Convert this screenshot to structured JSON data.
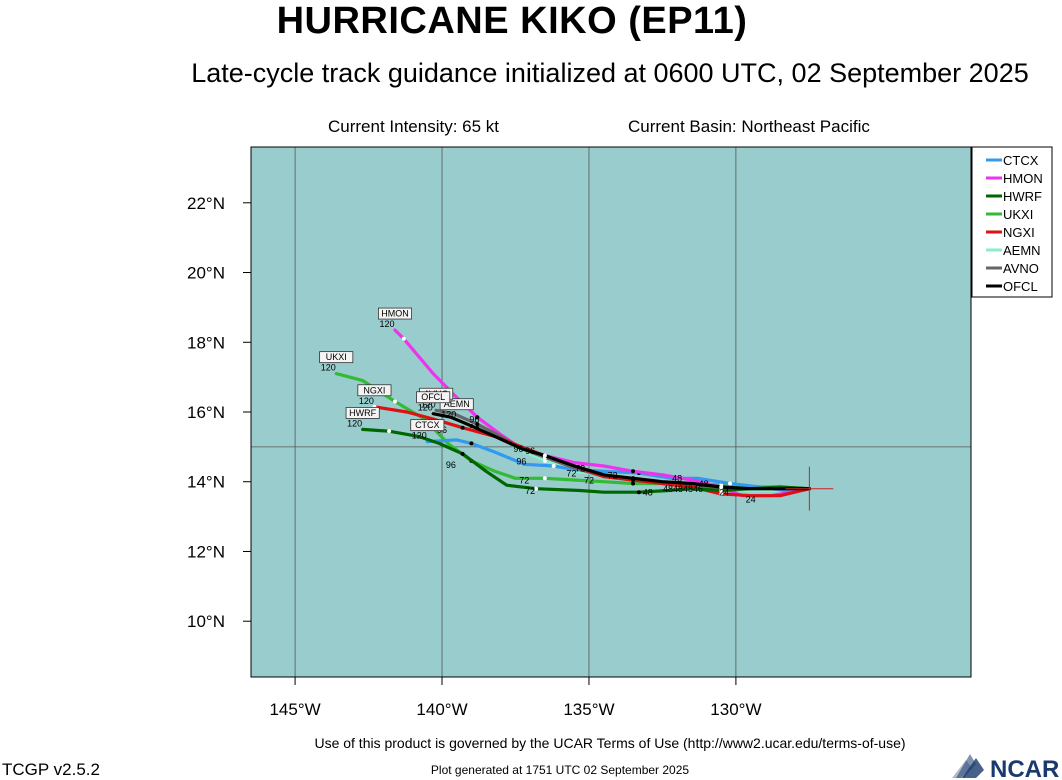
{
  "header": {
    "title": "HURRICANE KIKO (EP11)",
    "subtitle": "Late-cycle track guidance initialized at 0600 UTC, 02 September 2025",
    "current_intensity": "Current Intensity: 65 kt",
    "current_basin": "Current Basin: Northeast Pacific"
  },
  "map": {
    "lon_range": [
      -146.5,
      -122
    ],
    "lat_range": [
      8.4,
      23.6
    ],
    "background_color": "#99cccc",
    "lon_ticks": [
      {
        "value": -145,
        "label": "145°W"
      },
      {
        "value": -140,
        "label": "140°W"
      },
      {
        "value": -135,
        "label": "135°W"
      },
      {
        "value": -130,
        "label": "130°W"
      }
    ],
    "lat_ticks": [
      {
        "value": 10,
        "label": "10°N"
      },
      {
        "value": 12,
        "label": "12°N"
      },
      {
        "value": 14,
        "label": "14°N"
      },
      {
        "value": 16,
        "label": "16°N"
      },
      {
        "value": 18,
        "label": "18°N"
      },
      {
        "value": 20,
        "label": "20°N"
      },
      {
        "value": 22,
        "label": "22°N"
      }
    ],
    "grid_lons": [
      -145,
      -140,
      -135,
      -130
    ],
    "grid_lats": [
      15
    ]
  },
  "current_position": {
    "lon": -127.5,
    "lat": 13.8
  },
  "models": [
    {
      "name": "CTCX",
      "color": "#3399ee",
      "end_label": "CTCX",
      "end_hour": "120",
      "points": [
        [
          -127.5,
          13.8
        ],
        [
          -128.3,
          13.75
        ],
        [
          -129.2,
          13.85
        ],
        [
          -130.2,
          13.95
        ],
        [
          -131.3,
          14.1
        ],
        [
          -132.2,
          14.1
        ],
        [
          -133.3,
          14.25
        ],
        [
          -134.5,
          14.3
        ],
        [
          -135.5,
          14.35
        ],
        [
          -136.2,
          14.45
        ],
        [
          -137.2,
          14.5
        ],
        [
          -138.2,
          14.85
        ],
        [
          -139.0,
          15.1
        ],
        [
          -139.5,
          15.2
        ],
        [
          -140.5,
          15.15
        ]
      ],
      "hour_labels": [
        {
          "text": "96",
          "lon": -137.3,
          "lat": 14.5
        },
        {
          "text": "72",
          "lon": -135.3,
          "lat": 14.3
        }
      ]
    },
    {
      "name": "HMON",
      "color": "#ee33ee",
      "end_label": "HMON",
      "end_hour": "120",
      "points": [
        [
          -127.5,
          13.8
        ],
        [
          -128.8,
          13.6
        ],
        [
          -129.8,
          13.6
        ],
        [
          -130.5,
          13.85
        ],
        [
          -131.5,
          14.05
        ],
        [
          -132.5,
          14.2
        ],
        [
          -133.5,
          14.3
        ],
        [
          -134.5,
          14.45
        ],
        [
          -135.5,
          14.55
        ],
        [
          -136.5,
          14.75
        ],
        [
          -137.3,
          14.95
        ],
        [
          -138.0,
          15.35
        ],
        [
          -138.8,
          15.85
        ],
        [
          -139.6,
          16.5
        ],
        [
          -140.3,
          17.1
        ],
        [
          -141.3,
          18.1
        ],
        [
          -141.6,
          18.35
        ]
      ],
      "hour_labels": []
    },
    {
      "name": "HWRF",
      "color": "#006600",
      "end_label": "HWRF",
      "end_hour": "120",
      "points": [
        [
          -127.5,
          13.8
        ],
        [
          -128.5,
          13.85
        ],
        [
          -129.5,
          13.8
        ],
        [
          -130.5,
          13.75
        ],
        [
          -131.6,
          13.8
        ],
        [
          -132.3,
          13.75
        ],
        [
          -133.3,
          13.7
        ],
        [
          -134.5,
          13.7
        ],
        [
          -135.3,
          13.75
        ],
        [
          -136.8,
          13.8
        ],
        [
          -137.8,
          13.9
        ],
        [
          -138.5,
          14.3
        ],
        [
          -139.3,
          14.8
        ],
        [
          -140.1,
          15.1
        ],
        [
          -140.8,
          15.3
        ],
        [
          -141.8,
          15.45
        ],
        [
          -142.7,
          15.5
        ]
      ],
      "hour_labels": [
        {
          "text": "96",
          "lon": -139.7,
          "lat": 14.4
        },
        {
          "text": "72",
          "lon": -137.0,
          "lat": 13.65
        },
        {
          "text": "48",
          "lon": -133.0,
          "lat": 13.6
        }
      ]
    },
    {
      "name": "UKXI",
      "color": "#33bb33",
      "end_label": "UKXI",
      "end_hour": "120",
      "points": [
        [
          -127.5,
          13.8
        ],
        [
          -128.5,
          13.85
        ],
        [
          -129.5,
          13.85
        ],
        [
          -130.5,
          13.9
        ],
        [
          -131.5,
          13.95
        ],
        [
          -132.5,
          13.95
        ],
        [
          -133.5,
          13.95
        ],
        [
          -134.5,
          14.0
        ],
        [
          -135.5,
          14.05
        ],
        [
          -136.5,
          14.1
        ],
        [
          -137.5,
          14.1
        ],
        [
          -138.2,
          14.3
        ],
        [
          -139.0,
          14.6
        ],
        [
          -139.8,
          15.1
        ],
        [
          -140.6,
          15.8
        ],
        [
          -141.6,
          16.3
        ],
        [
          -142.7,
          16.9
        ],
        [
          -143.6,
          17.1
        ]
      ],
      "hour_labels": [
        {
          "text": "72",
          "lon": -137.2,
          "lat": 13.95
        }
      ]
    },
    {
      "name": "NGXI",
      "color": "#dd1111",
      "end_label": "NGXI",
      "end_hour": "120",
      "points": [
        [
          -127.5,
          13.8
        ],
        [
          -128.5,
          13.6
        ],
        [
          -129.5,
          13.6
        ],
        [
          -130.5,
          13.65
        ],
        [
          -131.5,
          13.85
        ],
        [
          -132.5,
          13.95
        ],
        [
          -133.5,
          14.05
        ],
        [
          -134.5,
          14.15
        ],
        [
          -135.5,
          14.45
        ],
        [
          -136.5,
          14.75
        ],
        [
          -137.3,
          15.0
        ],
        [
          -138.2,
          15.3
        ],
        [
          -139.3,
          15.55
        ],
        [
          -140.3,
          15.8
        ],
        [
          -141.2,
          16.0
        ],
        [
          -142.3,
          16.15
        ]
      ],
      "hour_labels": [
        {
          "text": "96",
          "lon": -137.0,
          "lat": 14.8
        },
        {
          "text": "72",
          "lon": -135.6,
          "lat": 14.15
        }
      ]
    },
    {
      "name": "AEMN",
      "color": "#88eecc",
      "end_label": "AEMN",
      "end_hour": "120",
      "points": [
        [
          -127.5,
          13.8
        ],
        [
          -128.5,
          13.75
        ],
        [
          -129.5,
          13.75
        ],
        [
          -130.5,
          13.8
        ],
        [
          -131.5,
          13.9
        ],
        [
          -132.5,
          14.0
        ],
        [
          -133.5,
          14.1
        ],
        [
          -134.5,
          14.2
        ],
        [
          -135.5,
          14.3
        ],
        [
          -136.5,
          14.6
        ],
        [
          -137.3,
          14.9
        ],
        [
          -138.0,
          15.25
        ],
        [
          -138.8,
          15.55
        ],
        [
          -139.5,
          15.75
        ]
      ],
      "hour_labels": []
    },
    {
      "name": "AVNO",
      "color": "#666666",
      "end_label": "AVNO",
      "end_hour": "120",
      "points": [
        [
          -127.5,
          13.8
        ],
        [
          -128.5,
          13.8
        ],
        [
          -129.5,
          13.8
        ],
        [
          -130.5,
          13.8
        ],
        [
          -131.5,
          13.85
        ],
        [
          -132.5,
          13.95
        ],
        [
          -133.5,
          14.05
        ],
        [
          -134.5,
          14.15
        ],
        [
          -135.5,
          14.4
        ],
        [
          -136.5,
          14.7
        ],
        [
          -137.3,
          14.95
        ],
        [
          -138.0,
          15.3
        ],
        [
          -138.8,
          15.65
        ],
        [
          -139.6,
          15.95
        ],
        [
          -140.2,
          16.05
        ]
      ],
      "hour_labels": []
    },
    {
      "name": "OFCL",
      "color": "#000000",
      "end_label": "OFCL",
      "end_hour": "120",
      "points": [
        [
          -127.5,
          13.8
        ],
        [
          -128.5,
          13.8
        ],
        [
          -129.5,
          13.8
        ],
        [
          -130.5,
          13.85
        ],
        [
          -131.5,
          13.95
        ],
        [
          -132.5,
          14.0
        ],
        [
          -133.5,
          14.1
        ],
        [
          -134.5,
          14.2
        ],
        [
          -135.5,
          14.45
        ],
        [
          -136.5,
          14.75
        ],
        [
          -137.3,
          14.95
        ],
        [
          -138.2,
          15.3
        ],
        [
          -139.0,
          15.6
        ],
        [
          -139.7,
          15.85
        ],
        [
          -140.3,
          15.95
        ]
      ],
      "hour_labels": [
        {
          "text": "96",
          "lon": -138.9,
          "lat": 15.7
        }
      ]
    }
  ],
  "misc_hour_labels": [
    {
      "text": "24",
      "lon": -130.4,
      "lat": 13.6
    },
    {
      "text": "24",
      "lon": -129.5,
      "lat": 13.4
    },
    {
      "text": "48484846",
      "lon": -131.8,
      "lat": 13.7
    },
    {
      "text": "48",
      "lon": -132.0,
      "lat": 14.0
    },
    {
      "text": "48",
      "lon": -131.1,
      "lat": 13.85
    },
    {
      "text": "72",
      "lon": -134.2,
      "lat": 14.1
    },
    {
      "text": "72",
      "lon": -135.0,
      "lat": 13.95
    },
    {
      "text": "96",
      "lon": -137.4,
      "lat": 14.85
    },
    {
      "text": "96",
      "lon": -140.0,
      "lat": 15.4
    }
  ],
  "legend": {
    "position": "top-right",
    "items": [
      {
        "name": "CTCX",
        "color": "#3399ee"
      },
      {
        "name": "HMON",
        "color": "#ee33ee"
      },
      {
        "name": "HWRF",
        "color": "#006600"
      },
      {
        "name": "UKXI",
        "color": "#33bb33"
      },
      {
        "name": "NGXI",
        "color": "#dd1111"
      },
      {
        "name": "AEMN",
        "color": "#88eecc"
      },
      {
        "name": "AVNO",
        "color": "#666666"
      },
      {
        "name": "OFCL",
        "color": "#000000"
      }
    ]
  },
  "footer": {
    "terms": "Use of this product is governed by the UCAR Terms of Use (http://www2.ucar.edu/terms-of-use)",
    "version": "TCGP v2.5.2",
    "generated": "Plot generated at 1751 UTC   02 September 2025",
    "logo_text": "NCAR"
  }
}
